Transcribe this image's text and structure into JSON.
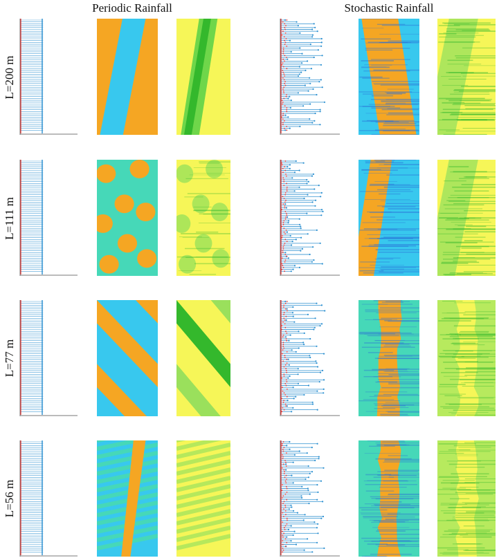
{
  "titles": {
    "periodic": "Periodic Rainfall",
    "stochastic": "Stochastic Rainfall"
  },
  "rows": [
    {
      "label": "L=200 m",
      "periodic_pattern": "diagonal-band-single",
      "stochastic_pattern": "diagonal-band-wide"
    },
    {
      "label": "L=111 m",
      "periodic_pattern": "spotted-patches",
      "stochastic_pattern": "diagonal-band-irregular"
    },
    {
      "label": "L=77 m",
      "periodic_pattern": "diagonal-stripes",
      "stochastic_pattern": "vertical-wavy-band"
    },
    {
      "label": "L=56 m",
      "periodic_pattern": "fine-oblique-stripes",
      "stochastic_pattern": "vertical-wavy-band"
    }
  ],
  "colors": {
    "bare_soil_orange": "#f5a623",
    "water_cyan": "#38c8ee",
    "water_deep_blue": "#2a6fd6",
    "teal": "#46d8b8",
    "green_bg": "#a8e060",
    "biomass_green": "#34b82c",
    "biomass_yellow": "#f6f658",
    "rain_pulse_blue": "#2a8fd0",
    "rain_pulse_red": "#e03030"
  }
}
